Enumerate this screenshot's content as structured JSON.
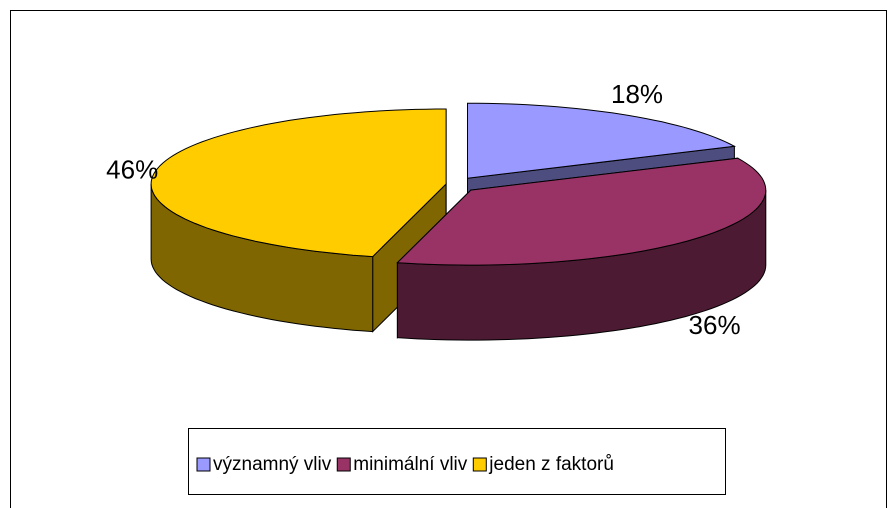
{
  "chart_data": {
    "type": "pie",
    "categories": [
      "významný vliv",
      "minimální vliv",
      "jeden z faktorů"
    ],
    "values": [
      18,
      36,
      46
    ],
    "value_labels": [
      "18%",
      "36%",
      "46%"
    ],
    "colors": [
      "#9999ff",
      "#993366",
      "#ffcc00"
    ],
    "legend": "bottom"
  }
}
